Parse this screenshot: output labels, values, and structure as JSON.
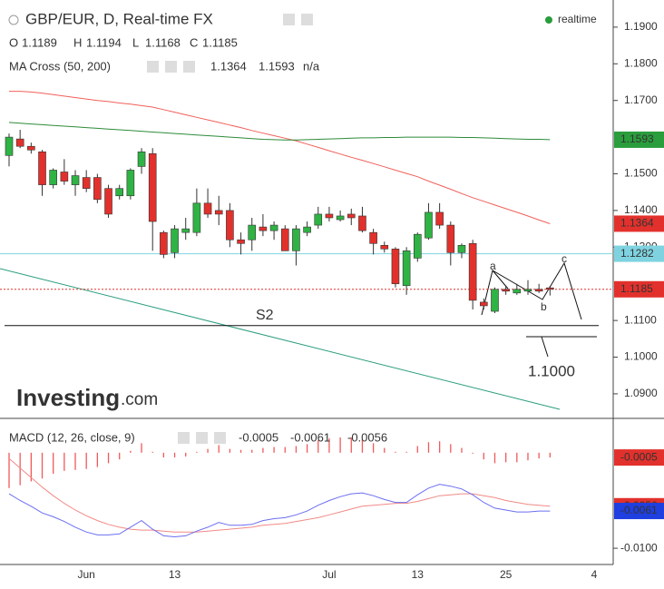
{
  "chart_data": {
    "type": "candlestick",
    "title": "GBP/EUR, D, Real-time FX",
    "status": "realtime",
    "categories": [
      null,
      null,
      null,
      null,
      null,
      null,
      null,
      "Jun",
      null,
      null,
      null,
      null,
      null,
      null,
      null,
      "13",
      null,
      null,
      null,
      null,
      null,
      null,
      null,
      null,
      null,
      null,
      null,
      null,
      null,
      "Jul",
      null,
      null,
      null,
      null,
      null,
      null,
      null,
      "13",
      null,
      null,
      null,
      null,
      null,
      null,
      null,
      "25",
      null,
      null,
      null,
      null,
      null,
      null,
      null,
      "4"
    ],
    "up_color": "#2fb344",
    "down_color": "#e2312c",
    "ohlc_labels": [
      "O",
      "H",
      "L",
      "C"
    ],
    "open": [
      1.155,
      1.1595,
      1.1575,
      1.156,
      1.147,
      1.1505,
      1.147,
      1.149,
      1.149,
      1.146,
      1.144,
      1.144,
      1.152,
      1.1555,
      1.134,
      1.1285,
      1.134,
      1.134,
      1.142,
      1.14,
      1.14,
      1.132,
      1.132,
      1.1355,
      1.1345,
      1.135,
      1.129,
      1.134,
      1.136,
      1.139,
      1.1375,
      1.139,
      1.1385,
      1.134,
      1.1305,
      1.1295,
      1.1195,
      1.127,
      1.1325,
      1.1395,
      1.136,
      1.1285,
      1.131,
      1.115,
      1.1125,
      1.1185,
      1.1175,
      1.118,
      1.1185,
      1.1189,
      null,
      null,
      null,
      null
    ],
    "high": [
      1.161,
      1.162,
      1.1585,
      1.1565,
      1.1515,
      1.154,
      1.151,
      1.151,
      1.15,
      1.147,
      1.147,
      1.1515,
      1.157,
      1.157,
      1.1345,
      1.136,
      1.138,
      1.146,
      1.146,
      1.144,
      1.142,
      1.134,
      1.138,
      1.139,
      1.137,
      1.136,
      1.136,
      1.137,
      1.141,
      1.141,
      1.14,
      1.1405,
      1.141,
      1.135,
      1.1315,
      1.13,
      1.13,
      1.134,
      1.142,
      1.142,
      1.137,
      1.131,
      1.132,
      1.116,
      1.119,
      1.1195,
      1.12,
      1.121,
      1.12,
      1.1194,
      null,
      null,
      null,
      null
    ],
    "low": [
      1.152,
      1.157,
      1.1555,
      1.144,
      1.146,
      1.147,
      1.144,
      1.145,
      1.142,
      1.138,
      1.143,
      1.143,
      1.15,
      1.129,
      1.127,
      1.127,
      1.132,
      1.133,
      1.138,
      1.136,
      1.13,
      1.128,
      1.129,
      1.133,
      1.132,
      1.129,
      1.125,
      1.133,
      1.135,
      1.137,
      1.137,
      1.136,
      1.134,
      1.128,
      1.1285,
      1.119,
      1.117,
      1.126,
      1.132,
      1.135,
      1.125,
      1.127,
      1.113,
      1.113,
      1.112,
      1.117,
      1.117,
      1.117,
      1.1175,
      1.1168,
      null,
      null,
      null,
      null
    ],
    "close": [
      1.16,
      1.1575,
      1.1565,
      1.147,
      1.151,
      1.148,
      1.1495,
      1.146,
      1.143,
      1.139,
      1.146,
      1.151,
      1.156,
      1.137,
      1.128,
      1.135,
      1.135,
      1.142,
      1.139,
      1.139,
      1.132,
      1.131,
      1.136,
      1.1345,
      1.136,
      1.129,
      1.135,
      1.1355,
      1.139,
      1.138,
      1.1385,
      1.138,
      1.1345,
      1.131,
      1.1295,
      1.12,
      1.129,
      1.1335,
      1.1395,
      1.136,
      1.1285,
      1.1305,
      1.1155,
      1.114,
      1.1185,
      1.118,
      1.1185,
      1.1185,
      1.118,
      1.1185,
      null,
      null,
      null,
      null
    ],
    "ma": {
      "name": "MA Cross (50, 200)",
      "na": "n/a",
      "series": [
        {
          "color": "#f0605a",
          "values": [
            1.1725,
            1.1725,
            1.1723,
            1.172,
            1.1716,
            1.1712,
            1.1708,
            1.1704,
            1.17,
            1.1697,
            1.1693,
            1.169,
            1.1686,
            1.1682,
            1.1675,
            1.1668,
            1.1661,
            1.1654,
            1.1647,
            1.164,
            1.1633,
            1.1626,
            1.1618,
            1.1611,
            1.1604,
            1.1597,
            1.159,
            1.1581,
            1.1572,
            1.1563,
            1.1554,
            1.1545,
            1.1537,
            1.1528,
            1.1519,
            1.151,
            1.1501,
            1.1492,
            1.148,
            1.1469,
            1.1458,
            1.1446,
            1.1435,
            1.1425,
            1.1415,
            1.1405,
            1.1395,
            1.1385,
            1.1374,
            1.1364,
            null,
            null,
            null,
            null
          ]
        },
        {
          "color": "#2e8b3a",
          "values": [
            1.164,
            1.1638,
            1.1636,
            1.1634,
            1.1632,
            1.163,
            1.1628,
            1.1626,
            1.1624,
            1.1622,
            1.162,
            1.1618,
            1.1616,
            1.1614,
            1.1612,
            1.161,
            1.1608,
            1.1606,
            1.1604,
            1.1602,
            1.16,
            1.1598,
            1.1596,
            1.1594,
            1.1593,
            1.1592,
            1.1592,
            1.1593,
            1.1594,
            1.1595,
            1.1596,
            1.1597,
            1.1598,
            1.1598,
            1.1599,
            1.1599,
            1.16,
            1.16,
            1.16,
            1.16,
            1.16,
            1.1599,
            1.1599,
            1.1598,
            1.1597,
            1.1596,
            1.1595,
            1.1594,
            1.1594,
            1.1593,
            null,
            null,
            null,
            null
          ]
        }
      ]
    },
    "levels": [
      {
        "value": 1.1282,
        "color": "#7fd3e0",
        "tag_text_color": "#333"
      }
    ],
    "support": {
      "value": 1.1086,
      "label": "S2"
    },
    "wave_labels": [
      "a",
      "b",
      "c"
    ],
    "target_label": "1.1000",
    "watermark": [
      "Investing",
      ".com"
    ],
    "ylim": [
      1.0833,
      1.1974
    ],
    "yticks": [
      {
        "value": 1.19,
        "label": "1.1900"
      },
      {
        "value": 1.18,
        "label": "1.1800"
      },
      {
        "value": 1.17,
        "label": "1.1700"
      },
      {
        "value": 1.15,
        "label": "1.1500"
      },
      {
        "value": 1.14,
        "label": "1.1400"
      },
      {
        "value": 1.13,
        "label": "1.1300"
      },
      {
        "value": 1.11,
        "label": "1.1100"
      },
      {
        "value": 1.1,
        "label": "1.1000"
      },
      {
        "value": 1.09,
        "label": "1.0900"
      }
    ],
    "macd": {
      "name": "MACD (12, 26, close, 9)",
      "ylim": [
        -0.0117,
        0.0035
      ],
      "yticks": [
        {
          "value": -0.01,
          "label": "-0.0100"
        }
      ],
      "histogram": {
        "color": "#f0595a",
        "values": [
          -0.0037,
          -0.0034,
          -0.003,
          -0.0027,
          -0.0022,
          -0.0019,
          -0.0018,
          -0.0017,
          -0.0015,
          -0.0011,
          -0.0007,
          0.0002,
          0.001,
          0.0001,
          -0.0005,
          -0.0005,
          -0.0004,
          0.0001,
          0.0004,
          0.0008,
          0.0004,
          0.0003,
          0.0003,
          0.0005,
          0.0006,
          0.0006,
          0.0007,
          0.0009,
          0.0013,
          0.0015,
          0.0016,
          0.0016,
          0.0014,
          0.001,
          0.0005,
          0.0001,
          0.0001,
          0.0007,
          0.0011,
          0.0012,
          0.0009,
          0.0005,
          -0.0001,
          -0.0007,
          -0.0011,
          -0.001,
          -0.001,
          -0.0008,
          -0.0006,
          -0.0005,
          null,
          null,
          null,
          null
        ]
      },
      "macd_line": {
        "color": "#6b6ef2",
        "values": [
          -0.0043,
          -0.005,
          -0.0056,
          -0.0063,
          -0.0067,
          -0.0072,
          -0.0078,
          -0.0083,
          -0.0086,
          -0.0086,
          -0.0085,
          -0.0078,
          -0.0071,
          -0.008,
          -0.0087,
          -0.0088,
          -0.0087,
          -0.0082,
          -0.0078,
          -0.0073,
          -0.0076,
          -0.0076,
          -0.0075,
          -0.0071,
          -0.0069,
          -0.0068,
          -0.0065,
          -0.0061,
          -0.0055,
          -0.005,
          -0.0046,
          -0.0043,
          -0.0042,
          -0.0045,
          -0.0049,
          -0.0052,
          -0.0052,
          -0.0044,
          -0.0037,
          -0.0033,
          -0.0035,
          -0.0038,
          -0.0044,
          -0.0052,
          -0.0058,
          -0.006,
          -0.0062,
          -0.0062,
          -0.0061,
          -0.0061,
          null,
          null,
          null,
          null
        ]
      },
      "signal_line": {
        "color": "#f08a86",
        "values": [
          -0.0006,
          -0.0016,
          -0.0026,
          -0.0036,
          -0.0045,
          -0.0053,
          -0.006,
          -0.0066,
          -0.0071,
          -0.0075,
          -0.0078,
          -0.008,
          -0.0081,
          -0.0081,
          -0.0082,
          -0.0083,
          -0.0083,
          -0.0083,
          -0.0082,
          -0.0081,
          -0.008,
          -0.0079,
          -0.0078,
          -0.0076,
          -0.0075,
          -0.0074,
          -0.0072,
          -0.007,
          -0.0068,
          -0.0065,
          -0.0062,
          -0.0059,
          -0.0056,
          -0.0055,
          -0.0054,
          -0.0053,
          -0.0053,
          -0.0051,
          -0.0048,
          -0.0045,
          -0.0044,
          -0.0043,
          -0.0043,
          -0.0045,
          -0.0047,
          -0.005,
          -0.0052,
          -0.0054,
          -0.0055,
          -0.0056,
          null,
          null,
          null,
          null
        ]
      }
    }
  }
}
